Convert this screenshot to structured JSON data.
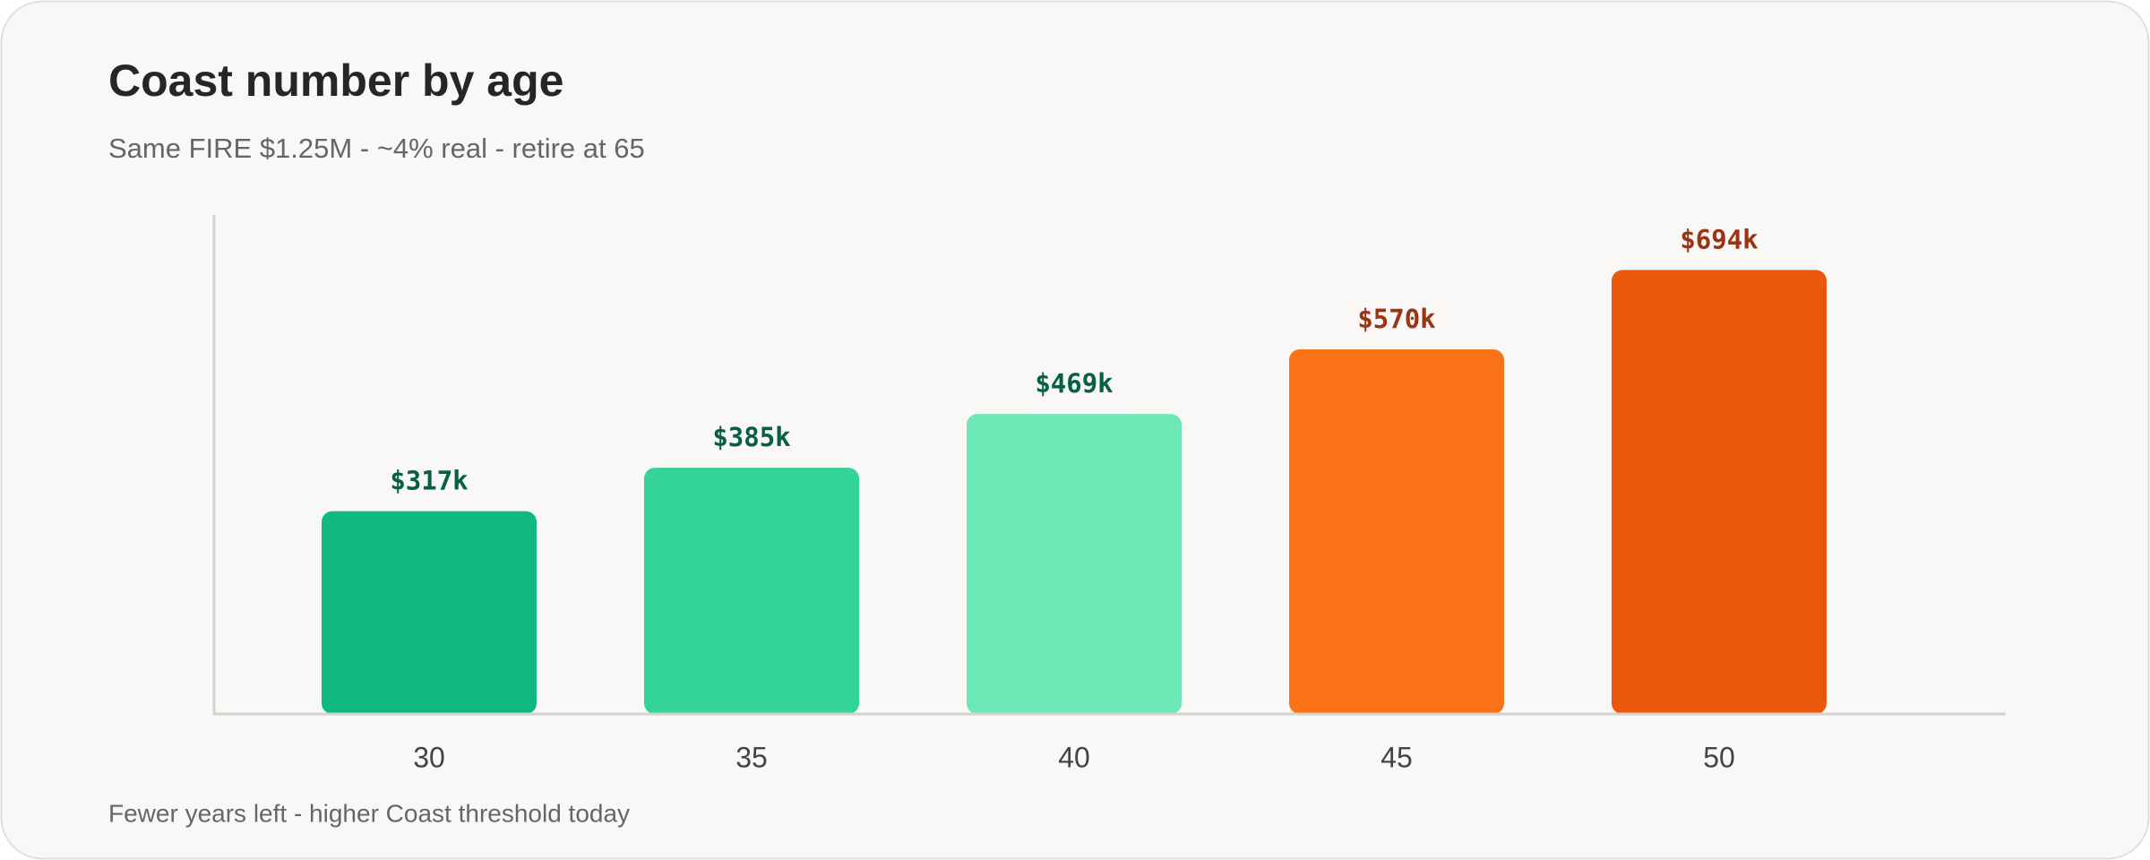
{
  "chart_data": {
    "type": "bar",
    "title": "Coast number by age",
    "subtitle": "Same FIRE $1.25M - ~4% real - retire at 65",
    "note": "Fewer years left - higher Coast threshold today",
    "categories": [
      "30",
      "35",
      "40",
      "45",
      "50"
    ],
    "values": [
      317,
      385,
      469,
      570,
      694
    ],
    "value_labels": [
      "$317k",
      "$385k",
      "$469k",
      "$570k",
      "$694k"
    ],
    "colors": [
      "#10b981",
      "#34d399",
      "#6ee7b7",
      "#f97316",
      "#ea580c"
    ],
    "label_colors": [
      "#065f46",
      "#065f46",
      "#065f46",
      "#9a3412",
      "#9a3412"
    ],
    "ylim": [
      0,
      780
    ]
  }
}
